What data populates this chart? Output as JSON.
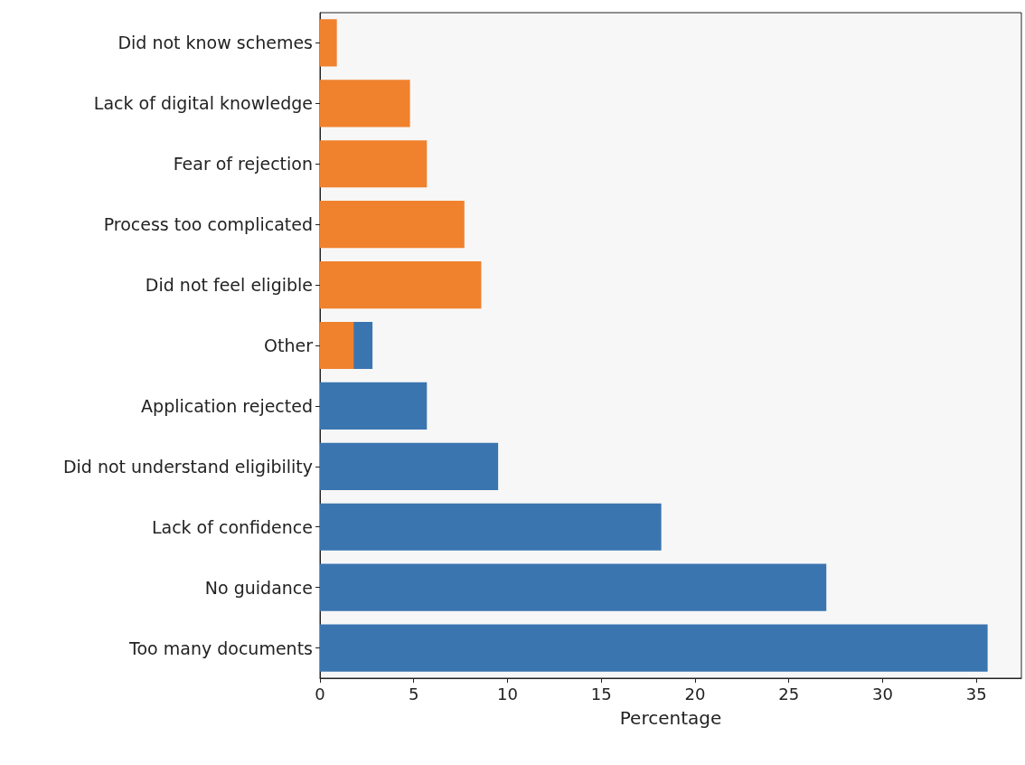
{
  "chart_data": {
    "type": "bar",
    "orientation": "horizontal",
    "xlabel": "Percentage",
    "categories": [
      "Did not know schemes",
      "Lack of digital knowledge",
      "Fear of rejection",
      "Process too complicated",
      "Did not feel eligible",
      "Other",
      "Application rejected",
      "Did not understand eligibility",
      "Lack of confidence",
      "No guidance",
      "Too many documents"
    ],
    "series": [
      {
        "color": "#3a75b0",
        "values": [
          null,
          null,
          null,
          null,
          null,
          2.8,
          5.7,
          9.5,
          18.2,
          27.0,
          35.6
        ]
      },
      {
        "color": "#f0812d",
        "values": [
          0.9,
          4.8,
          5.7,
          7.7,
          8.6,
          1.8,
          null,
          null,
          null,
          null,
          null
        ]
      }
    ],
    "xlim": [
      0,
      37.4
    ],
    "xticks": [
      0,
      5,
      10,
      15,
      20,
      25,
      30,
      35
    ]
  }
}
